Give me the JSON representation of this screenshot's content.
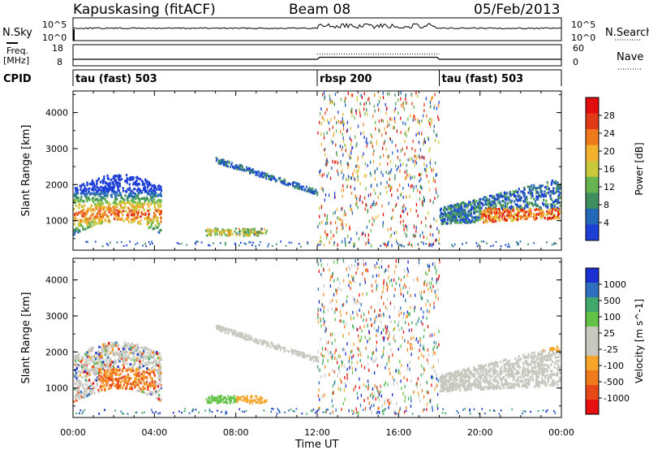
{
  "header": {
    "title": "Kapuskasing (fitACF)",
    "beam": "Beam 08",
    "date": "05/Feb/2013"
  },
  "labels": {
    "nsky": "N.Sky",
    "nsearch": "N.Search",
    "freq_line1": "Freq.",
    "freq_line2": "[MHz]",
    "nave": "Nave",
    "cpid": "CPID",
    "xlabel": "Time UT",
    "ylabel_power": "Slant Range [km]",
    "ylabel_velocity": "Slant Range [km]"
  },
  "noise_panel": {
    "left_ticks": [
      "10^5",
      "10^0"
    ],
    "right_ticks": [
      "10^5",
      "10^0"
    ]
  },
  "freq_panel": {
    "left_ticks": [
      "18",
      "8"
    ],
    "right_ticks": [
      "60",
      "0"
    ]
  },
  "cpid_segments": [
    {
      "label": "tau (fast) 503",
      "start_hour": 0,
      "end_hour": 12
    },
    {
      "label": "rbsp 200",
      "start_hour": 12,
      "end_hour": 18
    },
    {
      "label": "tau (fast) 503",
      "start_hour": 18,
      "end_hour": 24
    }
  ],
  "colors": {
    "power_scale": [
      "#1d3fd6",
      "#2468b8",
      "#3f8f5e",
      "#66b44f",
      "#c8c83a",
      "#f2b22e",
      "#ee7a1c",
      "#e03a17",
      "#e20d0d"
    ],
    "velocity_scale": [
      "#1a2fd0",
      "#2e6fc0",
      "#41a86c",
      "#62c348",
      "#c8c8c0",
      "#c8c8c0",
      "#f4a52a",
      "#f07a1b",
      "#e84818",
      "#e81010"
    ]
  },
  "chart_data": [
    {
      "type": "heatmap",
      "title": "Power",
      "xlabel": "Time UT",
      "ylabel": "Slant Range [km]",
      "x_ticks": [
        "00:00",
        "04:00",
        "08:00",
        "12:00",
        "16:00",
        "20:00",
        "00:00"
      ],
      "y_ticks": [
        "1000",
        "2000",
        "3000",
        "4000"
      ],
      "xlim_hours": [
        0,
        24
      ],
      "ylim_km": [
        180,
        4600
      ],
      "colorbar": {
        "label": "Power [dB]",
        "ticks": [
          "4",
          "8",
          "12",
          "16",
          "20",
          "24",
          "28"
        ],
        "range": [
          0,
          30
        ]
      }
    },
    {
      "type": "heatmap",
      "title": "Velocity",
      "xlabel": "Time UT",
      "ylabel": "Slant Range [km]",
      "x_ticks": [
        "00:00",
        "04:00",
        "08:00",
        "12:00",
        "16:00",
        "20:00",
        "00:00"
      ],
      "y_ticks": [
        "1000",
        "2000",
        "3000",
        "4000"
      ],
      "xlim_hours": [
        0,
        24
      ],
      "ylim_km": [
        180,
        4600
      ],
      "colorbar": {
        "label": "Velocity [m s^-1]",
        "ticks": [
          "1000",
          "500",
          "100",
          "25",
          "-25",
          "-100",
          "-500",
          "-1000"
        ]
      }
    }
  ]
}
